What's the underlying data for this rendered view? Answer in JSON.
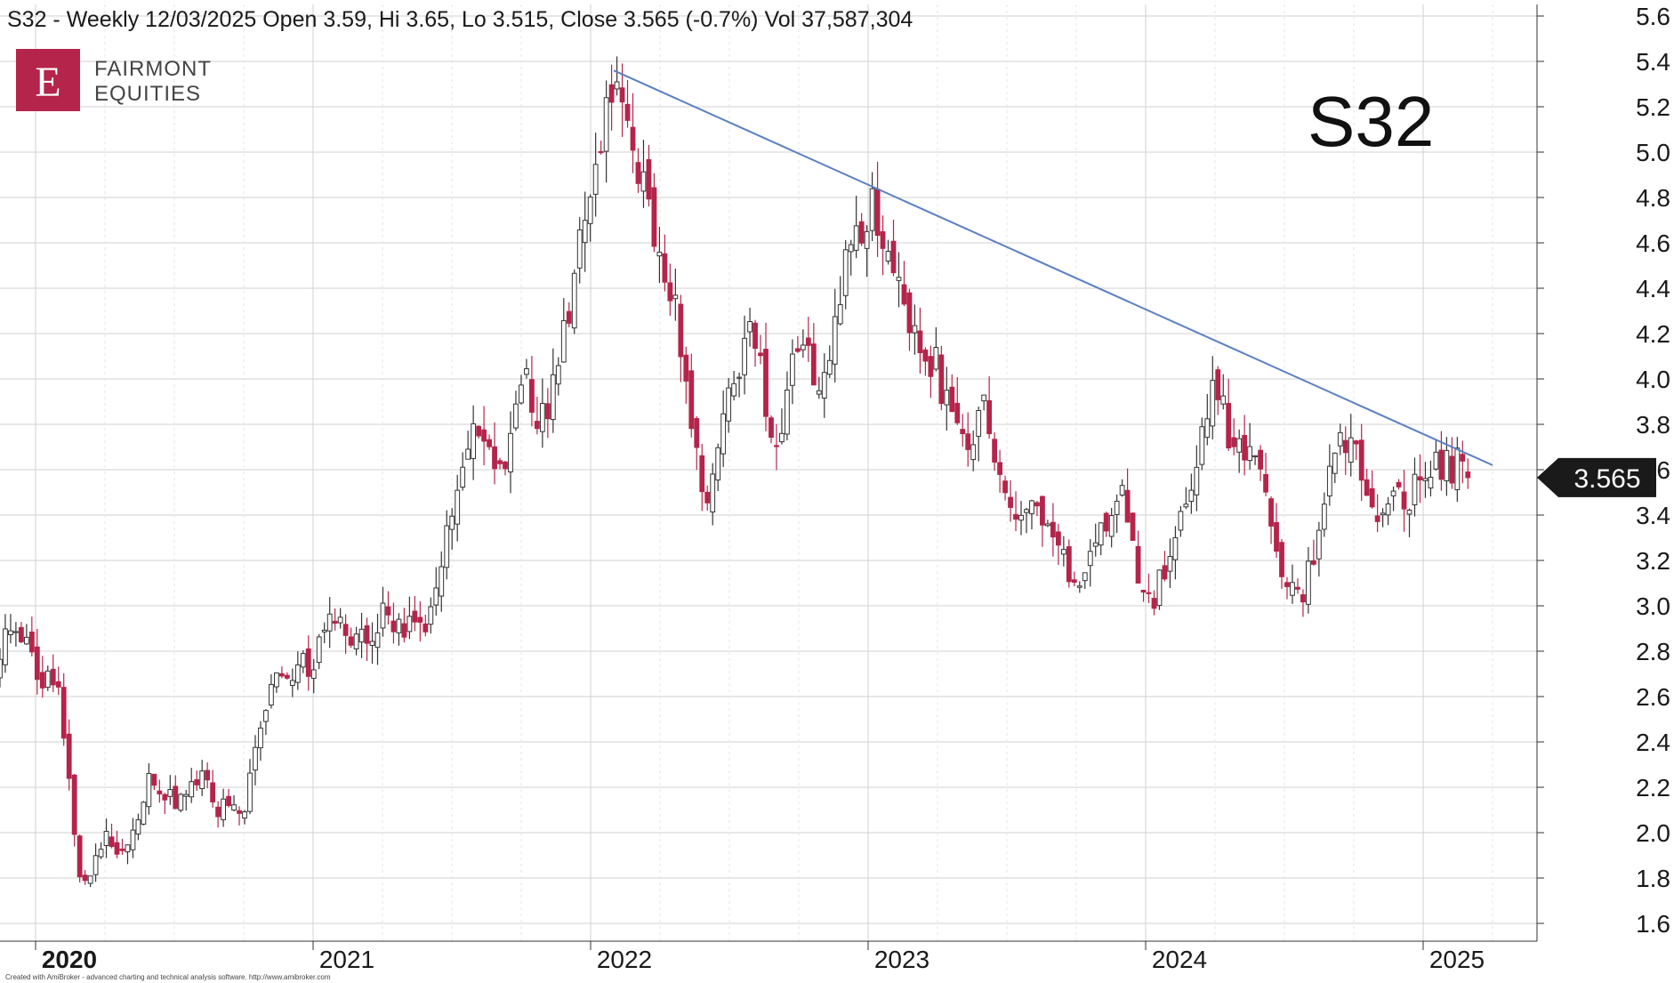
{
  "header": {
    "title": "S32 - Weekly 12/03/2025 Open 3.59, Hi 3.65, Lo 3.515, Close 3.565 (-0.7%) Vol 37,587,304"
  },
  "symbol_label": "S32",
  "logo": {
    "letter": "E",
    "line1": "FAIRMONT",
    "line2": "EQUITIES",
    "color": "#b5244a"
  },
  "price_badge": {
    "value": "3.565"
  },
  "credit": "Created with AmiBroker - advanced charting and technical analysis software. http://www.amibroker.com",
  "colors": {
    "up_body": "#ffffff",
    "up_stroke": "#333333",
    "down": "#b5244a",
    "trendline": "#5b7fc2",
    "grid": "#d0d0d0",
    "badge": "#1a1a1a"
  },
  "chart_data": {
    "type": "candlestick",
    "interval": "weekly",
    "ylim": [
      1.5,
      5.65
    ],
    "y_ticks": [
      "1.6",
      "1.8",
      "2.0",
      "2.2",
      "2.4",
      "2.6",
      "2.8",
      "3.0",
      "3.2",
      "3.4",
      "3.6",
      "3.8",
      "4.0",
      "4.2",
      "4.4",
      "4.6",
      "4.8",
      "5.0",
      "5.2",
      "5.4",
      "5.6"
    ],
    "x_ticks": [
      "2020",
      "2021",
      "2022",
      "2023",
      "2024",
      "2025"
    ],
    "grid": "on",
    "trendline": {
      "from": [
        "2022-02",
        5.36
      ],
      "to": [
        "2025-04",
        3.62
      ]
    },
    "last_close": 3.565,
    "price_path": [
      [
        "2019-11",
        2.7
      ],
      [
        "2019-12",
        2.9
      ],
      [
        "2020-01",
        2.75
      ],
      [
        "2020-02",
        2.6
      ],
      [
        "2020-03",
        1.75
      ],
      [
        "2020-04",
        2.0
      ],
      [
        "2020-05",
        1.9
      ],
      [
        "2020-06",
        2.25
      ],
      [
        "2020-07",
        2.15
      ],
      [
        "2020-08",
        2.25
      ],
      [
        "2020-09",
        2.1
      ],
      [
        "2020-10",
        2.1
      ],
      [
        "2020-11",
        2.6
      ],
      [
        "2020-12",
        2.7
      ],
      [
        "2021-01",
        2.75
      ],
      [
        "2021-02",
        2.95
      ],
      [
        "2021-03",
        2.85
      ],
      [
        "2021-04",
        2.95
      ],
      [
        "2021-05",
        2.9
      ],
      [
        "2021-06",
        2.95
      ],
      [
        "2021-07",
        3.45
      ],
      [
        "2021-08",
        3.8
      ],
      [
        "2021-09",
        3.55
      ],
      [
        "2021-10",
        4.0
      ],
      [
        "2021-11",
        3.8
      ],
      [
        "2021-12",
        4.25
      ],
      [
        "2022-01",
        4.9
      ],
      [
        "2022-02",
        5.3
      ],
      [
        "2022-03",
        4.9
      ],
      [
        "2022-04",
        4.6
      ],
      [
        "2022-05",
        4.1
      ],
      [
        "2022-06",
        3.45
      ],
      [
        "2022-07",
        3.9
      ],
      [
        "2022-08",
        4.2
      ],
      [
        "2022-09",
        3.65
      ],
      [
        "2022-10",
        4.15
      ],
      [
        "2022-11",
        4.0
      ],
      [
        "2022-12",
        4.5
      ],
      [
        "2023-01",
        4.75
      ],
      [
        "2023-02",
        4.6
      ],
      [
        "2023-03",
        4.2
      ],
      [
        "2023-04",
        4.05
      ],
      [
        "2023-05",
        3.7
      ],
      [
        "2023-06",
        3.85
      ],
      [
        "2023-07",
        3.5
      ],
      [
        "2023-08",
        3.4
      ],
      [
        "2023-09",
        3.35
      ],
      [
        "2023-10",
        3.1
      ],
      [
        "2023-11",
        3.35
      ],
      [
        "2023-12",
        3.5
      ],
      [
        "2024-01",
        2.95
      ],
      [
        "2024-02",
        3.2
      ],
      [
        "2024-03",
        3.6
      ],
      [
        "2024-04",
        3.95
      ],
      [
        "2024-05",
        3.65
      ],
      [
        "2024-06",
        3.65
      ],
      [
        "2024-07",
        3.0
      ],
      [
        "2024-08",
        3.1
      ],
      [
        "2024-09",
        3.7
      ],
      [
        "2024-10",
        3.75
      ],
      [
        "2024-11",
        3.4
      ],
      [
        "2024-12",
        3.45
      ],
      [
        "2025-01",
        3.55
      ],
      [
        "2025-02",
        3.65
      ],
      [
        "2025-03",
        3.565
      ]
    ]
  }
}
